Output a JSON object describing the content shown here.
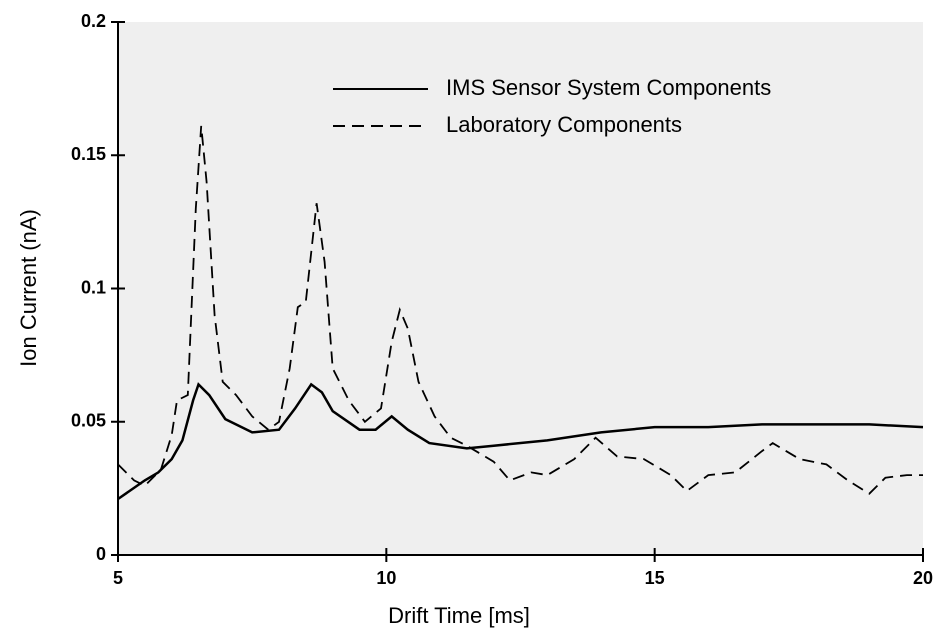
{
  "chart_data": {
    "type": "line",
    "xlabel": "Drift Time [ms]",
    "ylabel": "Ion Current (nA)",
    "xlim": [
      5,
      20
    ],
    "ylim": [
      0,
      0.2
    ],
    "xticks": [
      5,
      10,
      15,
      20
    ],
    "yticks": [
      0,
      0.05,
      0.1,
      0.15,
      0.2
    ],
    "legend": "upper right",
    "background": "#efefef",
    "series": [
      {
        "name": "IMS Sensor System Components",
        "color": "#000000",
        "dash": "solid",
        "x": [
          5,
          5.5,
          5.75,
          6.0,
          6.2,
          6.4,
          6.5,
          6.7,
          7.0,
          7.5,
          8.0,
          8.3,
          8.6,
          8.8,
          9.0,
          9.5,
          9.8,
          10.1,
          10.4,
          10.8,
          11.5,
          12,
          13,
          14,
          15,
          16,
          17,
          18,
          19,
          20
        ],
        "values": [
          0.021,
          0.028,
          0.031,
          0.036,
          0.043,
          0.058,
          0.064,
          0.06,
          0.051,
          0.046,
          0.047,
          0.055,
          0.064,
          0.061,
          0.054,
          0.047,
          0.047,
          0.052,
          0.047,
          0.042,
          0.04,
          0.041,
          0.043,
          0.046,
          0.048,
          0.048,
          0.049,
          0.049,
          0.049,
          0.048
        ]
      },
      {
        "name": "Laboratory Components",
        "color": "#000000",
        "dash": "dashed",
        "x": [
          5,
          5.3,
          5.5,
          5.8,
          6.0,
          6.1,
          6.3,
          6.45,
          6.55,
          6.65,
          6.8,
          6.95,
          7.2,
          7.5,
          7.8,
          8.0,
          8.2,
          8.35,
          8.5,
          8.7,
          8.85,
          9.0,
          9.3,
          9.6,
          9.9,
          10.1,
          10.25,
          10.4,
          10.6,
          10.9,
          11.2,
          11.5,
          12,
          12.3,
          12.7,
          13,
          13.5,
          13.9,
          14.3,
          14.8,
          15.3,
          15.6,
          16,
          16.5,
          17,
          17.2,
          17.7,
          18.2,
          18.6,
          19,
          19.3,
          19.7,
          20
        ],
        "values": [
          0.034,
          0.028,
          0.026,
          0.032,
          0.045,
          0.058,
          0.06,
          0.13,
          0.161,
          0.14,
          0.09,
          0.065,
          0.06,
          0.052,
          0.047,
          0.05,
          0.07,
          0.093,
          0.095,
          0.132,
          0.11,
          0.07,
          0.058,
          0.05,
          0.055,
          0.08,
          0.092,
          0.085,
          0.065,
          0.052,
          0.044,
          0.041,
          0.035,
          0.028,
          0.031,
          0.03,
          0.036,
          0.044,
          0.037,
          0.036,
          0.03,
          0.024,
          0.03,
          0.031,
          0.039,
          0.042,
          0.036,
          0.034,
          0.028,
          0.023,
          0.029,
          0.03,
          0.03
        ]
      }
    ]
  }
}
